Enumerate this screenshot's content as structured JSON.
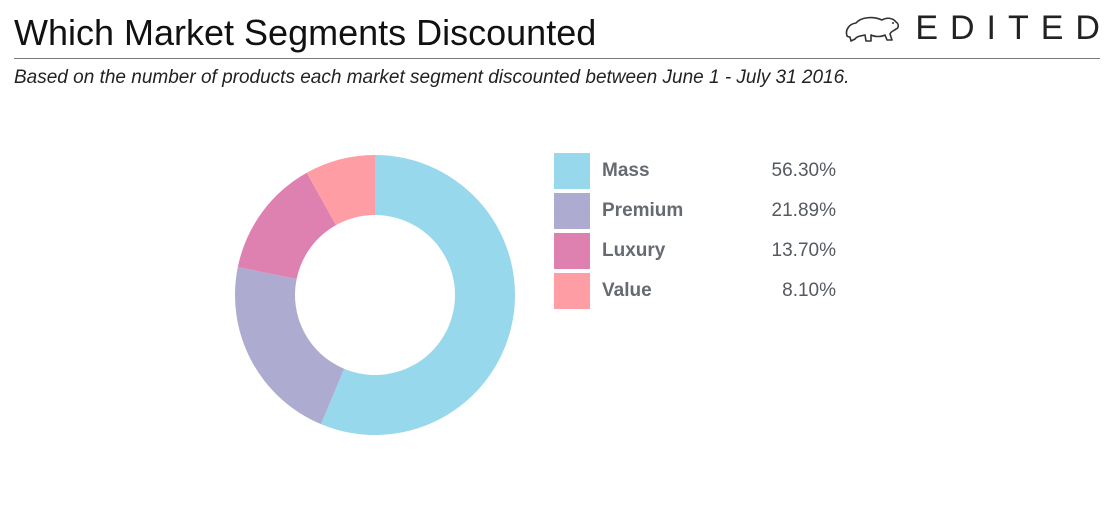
{
  "header": {
    "title": "Which Market Segments Discounted",
    "brand": "EDITED",
    "brand_icon": "polar-bear-icon"
  },
  "subtitle": "Based on the number of products each market segment discounted between June 1 - July 31 2016.",
  "chart_data": {
    "type": "pie",
    "donut": true,
    "title": "Which Market Segments Discounted",
    "subtitle": "Based on the number of products each market segment discounted between June 1 - July 31 2016.",
    "categories": [
      "Mass",
      "Premium",
      "Luxury",
      "Value"
    ],
    "values": [
      56.3,
      21.89,
      13.7,
      8.1
    ],
    "value_labels": [
      "56.30%",
      "21.89%",
      "13.70%",
      "8.10%"
    ],
    "colors": [
      "#98d8ec",
      "#adabd0",
      "#df81b0",
      "#fe9ea4"
    ],
    "legend_position": "right"
  }
}
